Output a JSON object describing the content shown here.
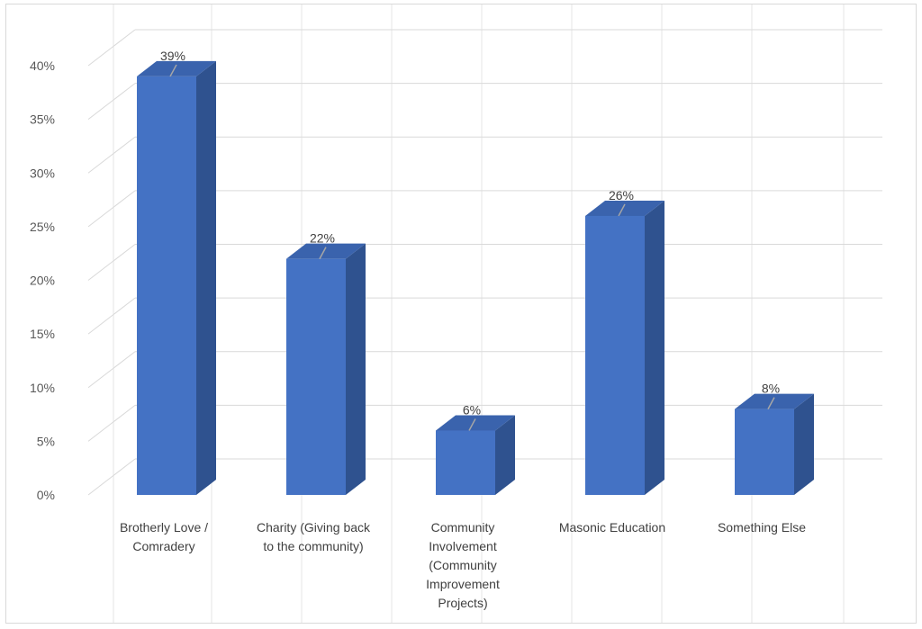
{
  "chart_data": {
    "type": "bar",
    "title": "",
    "xlabel": "",
    "ylabel": "",
    "categories": [
      [
        "Brotherly Love /",
        "Comradery"
      ],
      [
        "Charity (Giving back",
        "to the community)"
      ],
      [
        "Community",
        "Involvement",
        "(Community",
        "Improvement",
        "Projects)"
      ],
      [
        "Masonic Education"
      ],
      [
        "Something Else"
      ]
    ],
    "values": [
      39,
      22,
      6,
      26,
      8
    ],
    "data_labels": [
      "39%",
      "22%",
      "6%",
      "26%",
      "8%"
    ],
    "ylim": [
      0,
      40
    ],
    "y_ticks": [
      0,
      5,
      10,
      15,
      20,
      25,
      30,
      35,
      40
    ],
    "y_tick_labels": [
      "0%",
      "5%",
      "10%",
      "15%",
      "20%",
      "25%",
      "30%",
      "35%",
      "40%"
    ],
    "grid": true,
    "legend": "none",
    "style": "3d-column",
    "colors": {
      "bar_front": "#4472c4",
      "bar_side": "#2f528f",
      "bar_top": "#3a63ad",
      "gridline": "#d9d9d9"
    }
  }
}
